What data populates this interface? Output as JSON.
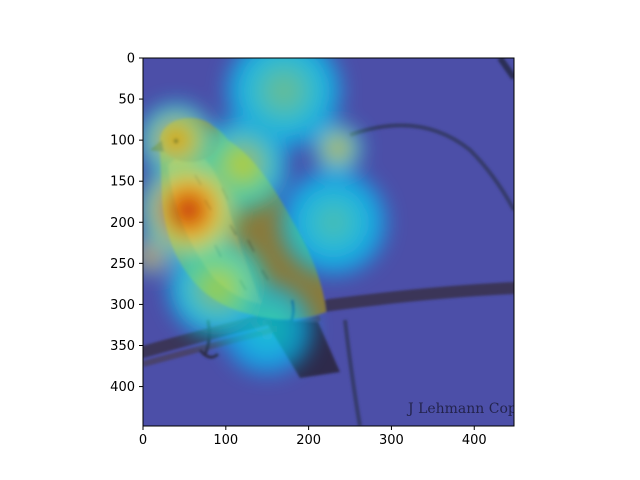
{
  "chart_data": {
    "type": "heatmap",
    "title": "",
    "xlabel": "",
    "ylabel": "",
    "xlim": [
      0,
      448
    ],
    "ylim": [
      448,
      0
    ],
    "xticks": [
      0,
      100,
      200,
      300,
      400
    ],
    "yticks": [
      0,
      50,
      100,
      150,
      200,
      250,
      300,
      350,
      400
    ],
    "colormap": "jet",
    "overlay_opacity": 0.5,
    "background_image": "bird-on-branch-photo",
    "watermark_text": "J Lehmann Cope",
    "grid": false,
    "hotspots": [
      {
        "x": 55,
        "y": 185,
        "radius": 60,
        "intensity": 1.0
      },
      {
        "x": 10,
        "y": 240,
        "radius": 22,
        "intensity": 0.95
      },
      {
        "x": 40,
        "y": 100,
        "radius": 45,
        "intensity": 0.75
      },
      {
        "x": 120,
        "y": 130,
        "radius": 55,
        "intensity": 0.6
      },
      {
        "x": 235,
        "y": 110,
        "radius": 30,
        "intensity": 0.7
      },
      {
        "x": 170,
        "y": 40,
        "radius": 70,
        "intensity": 0.5
      },
      {
        "x": 230,
        "y": 200,
        "radius": 65,
        "intensity": 0.45
      },
      {
        "x": 90,
        "y": 280,
        "radius": 60,
        "intensity": 0.55
      },
      {
        "x": 150,
        "y": 330,
        "radius": 55,
        "intensity": 0.4
      }
    ]
  }
}
